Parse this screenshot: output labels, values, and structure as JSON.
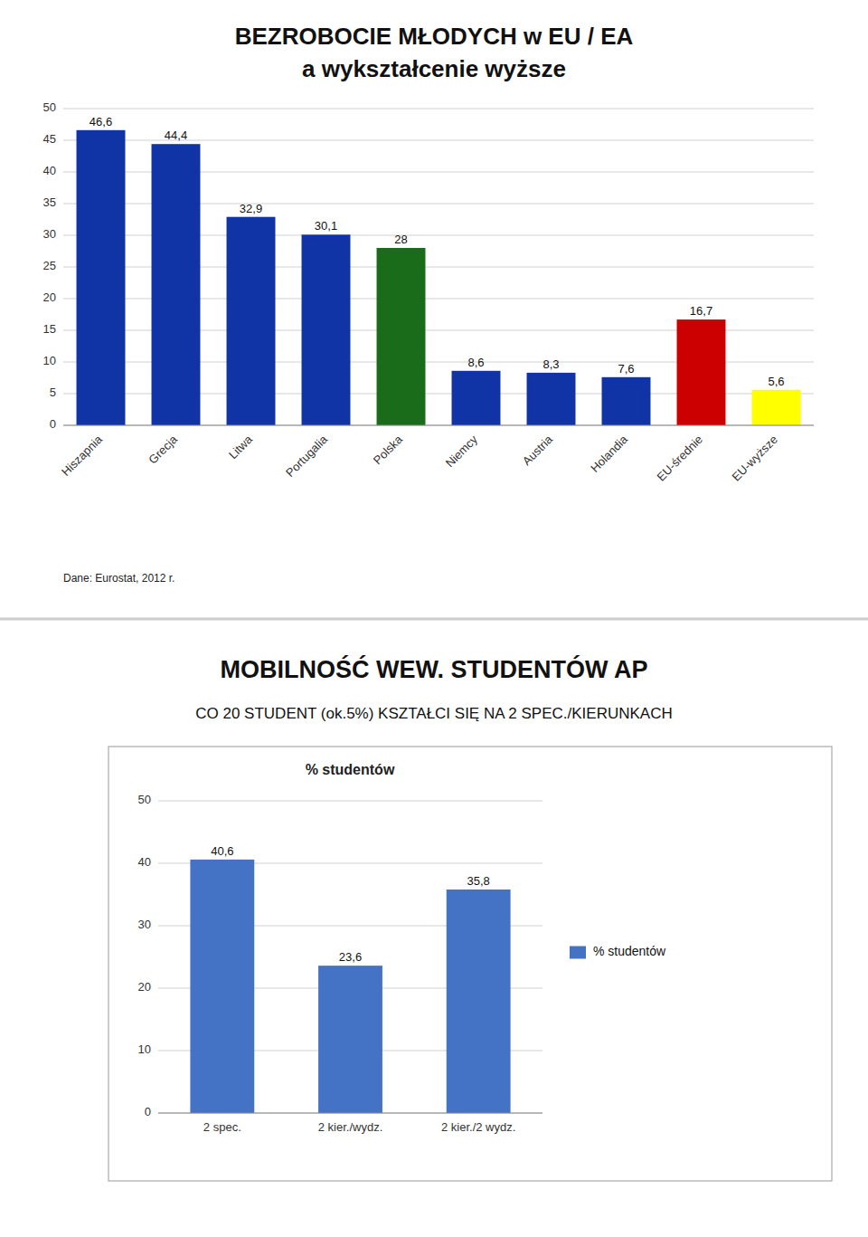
{
  "chart_data": [
    {
      "type": "bar",
      "title": "BEZROBOCIE MŁODYCH w EU / EA",
      "subtitle": "a wykształcenie wyższe",
      "categories": [
        "Hiszapnia",
        "Grecja",
        "Litwa",
        "Portugalia",
        "Polska",
        "Niemcy",
        "Austria",
        "Holandia",
        "EU-średnie",
        "EU-wyższe"
      ],
      "values": [
        46.6,
        44.4,
        32.9,
        30.1,
        28.0,
        8.6,
        8.3,
        7.6,
        16.7,
        5.6
      ],
      "value_labels": [
        "46,6",
        "44,4",
        "32,9",
        "30,1",
        "28",
        "8,6",
        "8,3",
        "7,6",
        "16,7",
        "5,6"
      ],
      "colors": [
        "#1034a6",
        "#1034a6",
        "#1034a6",
        "#1034a6",
        "#1a6b1a",
        "#1034a6",
        "#1034a6",
        "#1034a6",
        "#cc0000",
        "#ffff00"
      ],
      "ylim": [
        0,
        50
      ],
      "yticks": [
        0,
        5,
        10,
        15,
        20,
        25,
        30,
        35,
        40,
        45,
        50
      ],
      "grid": true,
      "data_labels": true,
      "annotations": [
        "Dane: Eurostat, 2012 r."
      ]
    },
    {
      "type": "bar",
      "title": "MOBILNOŚĆ WEW. STUDENTÓW AP",
      "subtitle": "CO 20 STUDENT (ok.5%) KSZTAŁCI SIĘ NA 2 SPEC./KIERUNKACH",
      "categories": [
        "2 spec.",
        "2 kier./wydz.",
        "2 kier./2 wydz."
      ],
      "series": [
        {
          "name": "% studentów",
          "color": "#4472c4",
          "values": [
            40.6,
            23.6,
            35.8
          ],
          "value_labels": [
            "40,6",
            "23,6",
            "35,8"
          ]
        }
      ],
      "ylim": [
        0,
        50
      ],
      "yticks": [
        0,
        10,
        20,
        30,
        40,
        50
      ],
      "grid": true,
      "data_labels": true,
      "legend": "right",
      "annotations": [
        "% studentów"
      ]
    }
  ]
}
